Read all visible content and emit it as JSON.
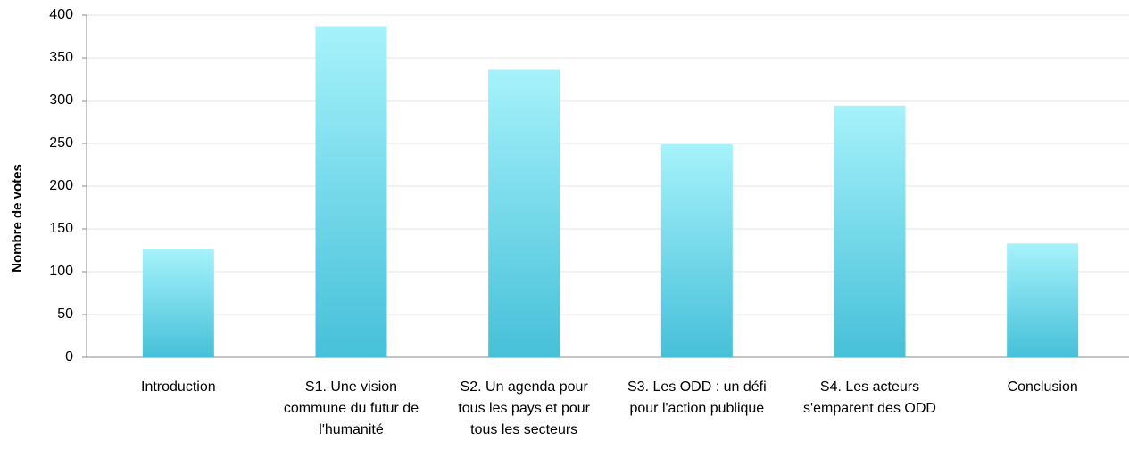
{
  "chart_data": {
    "type": "bar",
    "y_axis_label": "Nombre de votes",
    "categories": [
      "Introduction",
      "S1. Une vision commune du futur de l'humanité",
      "S2. Un agenda pour tous les pays et pour tous les secteurs",
      "S3. Les ODD : un défi pour l'action publique",
      "S4. Les acteurs s'emparent des ODD",
      "Conclusion"
    ],
    "values": [
      126,
      387,
      336,
      249,
      294,
      133
    ],
    "gradient": [
      "#a6f2fb",
      "#46c0d9"
    ],
    "ylim": [
      0,
      400
    ],
    "yticks": [
      0,
      50,
      100,
      150,
      200,
      250,
      300,
      350,
      400
    ],
    "grid": true
  }
}
